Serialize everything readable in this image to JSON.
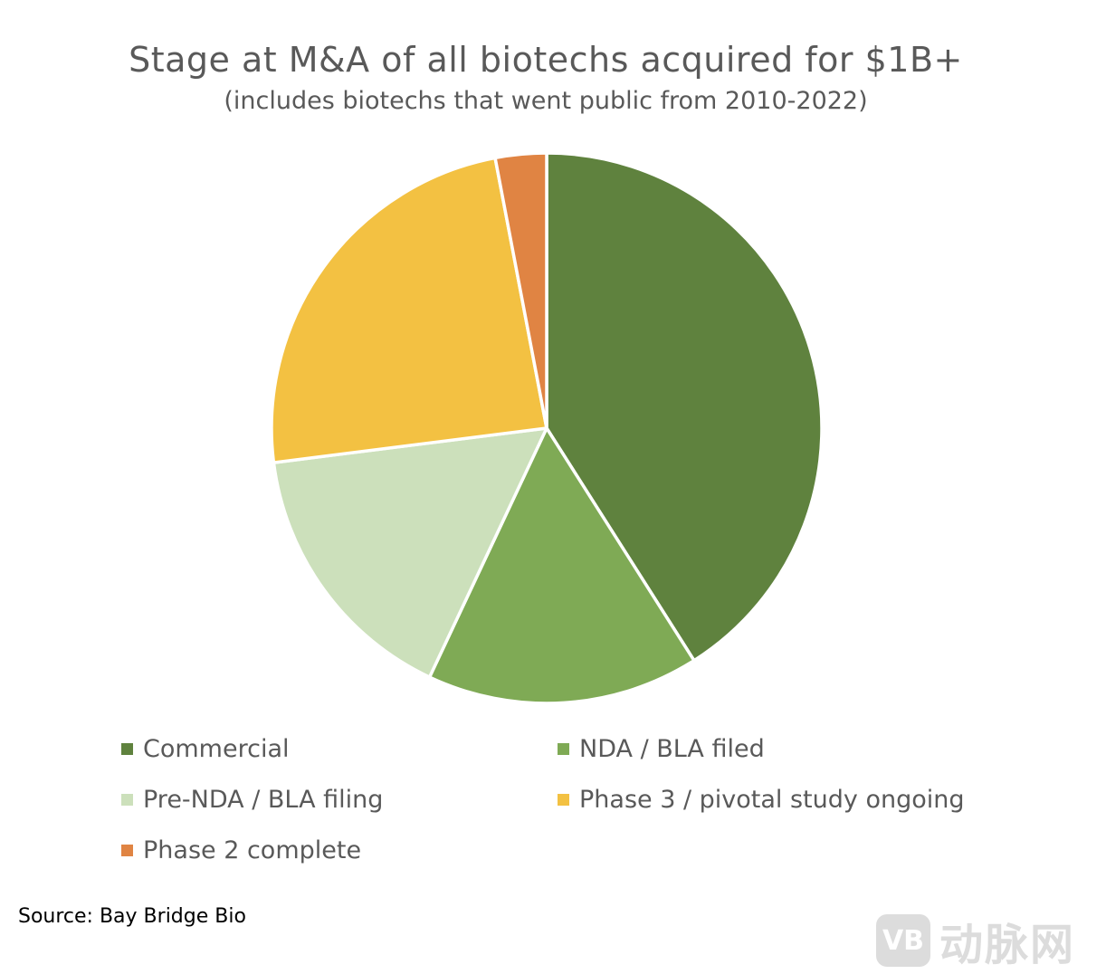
{
  "chart_data": {
    "type": "pie",
    "title": "Stage at M&A of all biotechs acquired for $1B+",
    "subtitle": "(includes biotechs that went public from 2010-2022)",
    "categories": [
      "Commercial",
      "NDA / BLA filed",
      "Pre-NDA / BLA filing",
      "Phase 3 / pivotal study ongoing",
      "Phase 2 complete"
    ],
    "values": [
      41,
      16,
      16,
      24,
      3
    ],
    "colors": [
      "#5f823e",
      "#7faa55",
      "#cce0bb",
      "#f3c142",
      "#e08443"
    ],
    "legend_position": "bottom",
    "start_angle": "top, clockwise"
  },
  "source": "Source: Bay Bridge Bio",
  "watermark": {
    "logo": "VB",
    "text": "动脉网"
  }
}
